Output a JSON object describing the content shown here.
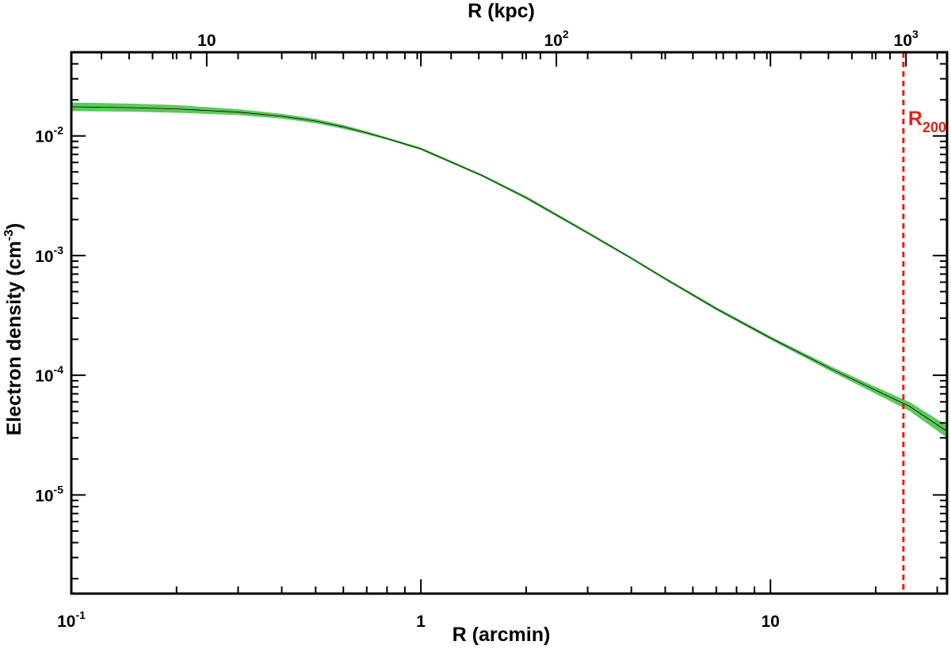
{
  "chart_data": {
    "type": "line",
    "xlabel": "R (arcmin)",
    "x2label": "R (kpc)",
    "ylabel": "Electron density (cm",
    "ylabel_sup": "-3",
    "ylabel_close": ")",
    "x_scale": "log",
    "y_scale": "log",
    "xlim": [
      0.1,
      32
    ],
    "ylim": [
      1.5e-06,
      0.05
    ],
    "x2lim": [
      4.1,
      1310
    ],
    "grid": false,
    "x_ticks": [
      {
        "value": 0.1,
        "base": "10",
        "exp": "-1"
      },
      {
        "value": 1,
        "base": "1",
        "exp": ""
      },
      {
        "value": 10,
        "base": "10",
        "exp": ""
      }
    ],
    "x2_ticks": [
      {
        "value": 10,
        "base": "10",
        "exp": ""
      },
      {
        "value": 100,
        "base": "10",
        "exp": "2"
      },
      {
        "value": 1000,
        "base": "10",
        "exp": "3"
      }
    ],
    "y_ticks": [
      {
        "value": 0.01,
        "base": "10",
        "exp": "-2"
      },
      {
        "value": 0.001,
        "base": "10",
        "exp": "-3"
      },
      {
        "value": 0.0001,
        "base": "10",
        "exp": "-4"
      },
      {
        "value": 1e-05,
        "base": "10",
        "exp": "-5"
      }
    ],
    "series": [
      {
        "type": "line_with_band",
        "color": "#000000",
        "band_color": "#5cc85c",
        "x": [
          0.1,
          0.15,
          0.2,
          0.3,
          0.4,
          0.5,
          0.6,
          0.7,
          0.8,
          1.0,
          1.5,
          2,
          3,
          4,
          5,
          7,
          10,
          15,
          20,
          25,
          32
        ],
        "y": [
          0.0175,
          0.0172,
          0.0168,
          0.0158,
          0.0146,
          0.0133,
          0.0119,
          0.0106,
          0.0095,
          0.0078,
          0.00465,
          0.00305,
          0.00155,
          0.00095,
          0.00064,
          0.00036,
          0.000205,
          0.000112,
          7.5e-05,
          5.5e-05,
          3.4e-05
        ],
        "y_low": [
          0.0163,
          0.0161,
          0.0158,
          0.0151,
          0.0141,
          0.0129,
          0.0116,
          0.0104,
          0.0094,
          0.0077,
          0.0046,
          0.003,
          0.00153,
          0.00094,
          0.000632,
          0.000354,
          0.000201,
          0.000108,
          7.1e-05,
          5.1e-05,
          3.05e-05
        ],
        "y_high": [
          0.0188,
          0.0184,
          0.0179,
          0.0165,
          0.0151,
          0.0137,
          0.0122,
          0.0108,
          0.0096,
          0.0079,
          0.0047,
          0.0031,
          0.00157,
          0.00096,
          0.000648,
          0.000366,
          0.000209,
          0.000116,
          7.9e-05,
          5.9e-05,
          3.75e-05
        ]
      }
    ],
    "annotations": [
      {
        "type": "vline",
        "x": 24,
        "color": "#e32119",
        "style": "dashed",
        "label_base": "R",
        "label_sub": "200"
      }
    ]
  }
}
